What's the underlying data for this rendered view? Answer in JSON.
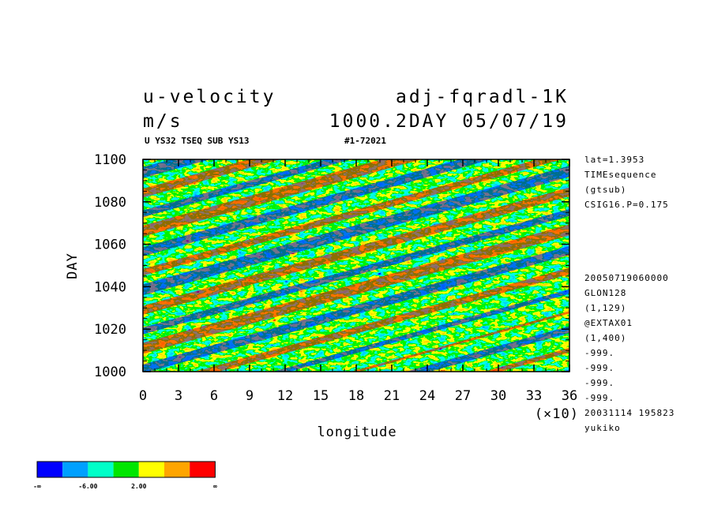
{
  "header": {
    "title_left": "u-velocity",
    "title_right": "adj-fqradl-1K",
    "units": "m/s",
    "run_info": "1000.2DAY 05/07/19",
    "subtitle_left": "U YS32 TSEQ SUB YS13",
    "subtitle_right": "#1-72021"
  },
  "side_info": {
    "top": [
      "lat=1.3953",
      "TIMEsequence",
      "(gtsub)",
      "CSIG16.P=0.175"
    ],
    "bottom": [
      "20050719060000",
      "GLON128",
      "(1,129)",
      "@EXTAX01",
      "(1,400)",
      "-999.",
      "-999.",
      "-999.",
      "-999.",
      "20031114 195823",
      "yukiko"
    ]
  },
  "chart_data": {
    "type": "heatmap",
    "xlabel": "longitude",
    "ylabel": "DAY",
    "x_multiplier": "(×10)",
    "xlim": [
      0,
      36
    ],
    "ylim": [
      1000,
      1100
    ],
    "x_ticks": [
      "0",
      "3",
      "6",
      "9",
      "12",
      "15",
      "18",
      "21",
      "24",
      "27",
      "30",
      "33",
      "36"
    ],
    "y_ticks": [
      "1000",
      "1020",
      "1040",
      "1060",
      "1080",
      "1100"
    ],
    "colorbar": {
      "colors": [
        "#0000ff",
        "#00a0ff",
        "#00ffc8",
        "#00e600",
        "#ffff00",
        "#ffa500",
        "#ff0000"
      ],
      "labels": [
        "-∞",
        "-6.00",
        "2.00",
        "∞"
      ]
    }
  }
}
